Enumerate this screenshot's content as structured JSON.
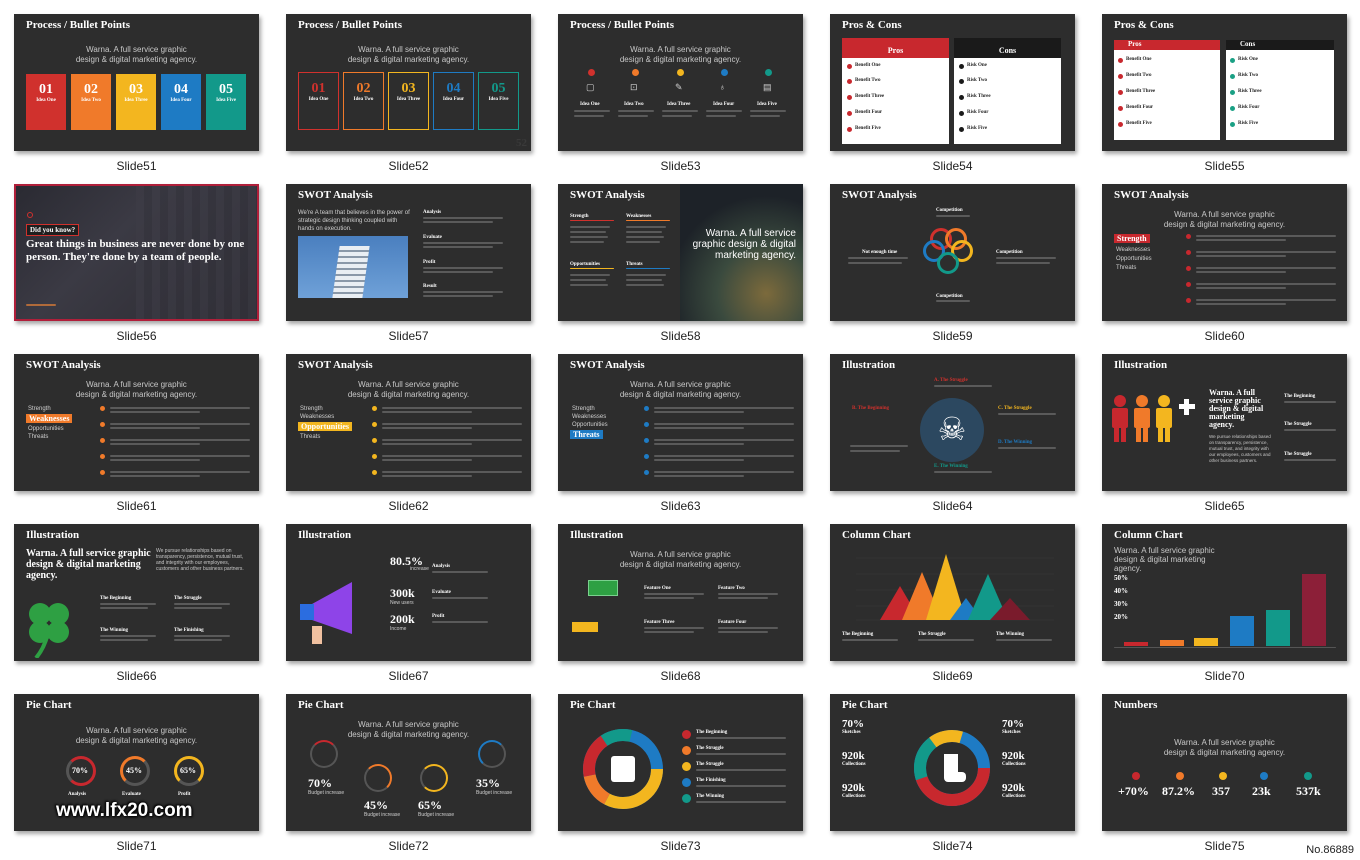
{
  "slides": [
    {
      "label": "Slide51",
      "title": "Process / Bullet Points",
      "subtitle": "Warna. A full service graphic design & digital marketing agency.",
      "blocks": [
        {
          "num": "01",
          "text": "Idea One"
        },
        {
          "num": "02",
          "text": "Idea Two"
        },
        {
          "num": "03",
          "text": "Idea Three"
        },
        {
          "num": "04",
          "text": "Idea Four"
        },
        {
          "num": "05",
          "text": "Idea Five"
        }
      ]
    },
    {
      "label": "Slide52",
      "title": "Process / Bullet Points",
      "subtitle": "Warna. A full service graphic design & digital marketing agency.",
      "blocks": [
        {
          "num": "01",
          "text": "Idea One"
        },
        {
          "num": "02",
          "text": "Idea Two"
        },
        {
          "num": "03",
          "text": "Idea Three"
        },
        {
          "num": "04",
          "text": "Idea Four"
        },
        {
          "num": "05",
          "text": "Idea Five"
        }
      ]
    },
    {
      "label": "Slide53",
      "title": "Process / Bullet Points",
      "subtitle": "Warna. A full service graphic design & digital marketing agency.",
      "items": [
        "Idea One",
        "Idea Two",
        "Idea Three",
        "Idea Four",
        "Idea Five"
      ]
    },
    {
      "label": "Slide54",
      "title": "Pros & Cons",
      "pros": "Pros",
      "cons": "Cons",
      "pros_items": [
        "Benefit One",
        "Benefit Two",
        "Benefit Three",
        "Benefit Four",
        "Benefit Five"
      ],
      "cons_items": [
        "Risk One",
        "Risk Two",
        "Risk Three",
        "Risk Four",
        "Risk Five"
      ]
    },
    {
      "label": "Slide55",
      "title": "Pros & Cons",
      "pros": "Pros",
      "cons": "Cons",
      "pros_items": [
        "Benefit One",
        "Benefit Two",
        "Benefit Three",
        "Benefit Four",
        "Benefit Five"
      ],
      "cons_items": [
        "Risk One",
        "Risk Two",
        "Risk Three",
        "Risk Four",
        "Risk Five"
      ]
    },
    {
      "label": "Slide56",
      "tag": "Did you know?",
      "quote": "Great things in business are never done by one person. They're done by a team of people."
    },
    {
      "label": "Slide57",
      "title": "SWOT Analysis",
      "text": "We're A team that believes in the power of strategic design thinking coupled with hands on execution.",
      "items": [
        "Analysis",
        "Evaluate",
        "Profit",
        "Result"
      ]
    },
    {
      "label": "Slide58",
      "title": "SWOT Analysis",
      "quads": [
        "Strength",
        "Weaknesses",
        "Opportunities",
        "Threats"
      ],
      "right_text": "Warna. A full service graphic design & digital marketing agency."
    },
    {
      "label": "Slide59",
      "title": "SWOT Analysis",
      "labels": [
        "Competition",
        "Not enough time",
        "Competition",
        "Competition"
      ]
    },
    {
      "label": "Slide60",
      "title": "SWOT Analysis",
      "subtitle": "Warna. A full service graphic design & digital marketing agency.",
      "list": [
        "Strength",
        "Weaknesses",
        "Opportunities",
        "Threats"
      ],
      "highlight": "Strength"
    },
    {
      "label": "Slide61",
      "title": "SWOT Analysis",
      "subtitle": "Warna. A full service graphic design & digital marketing agency.",
      "list": [
        "Strength",
        "Weaknesses",
        "Opportunities",
        "Threats"
      ],
      "highlight": "Weaknesses"
    },
    {
      "label": "Slide62",
      "title": "SWOT Analysis",
      "subtitle": "Warna. A full service graphic design & digital marketing agency.",
      "list": [
        "Strength",
        "Weaknesses",
        "Opportunities",
        "Threats"
      ],
      "highlight": "Opportunities"
    },
    {
      "label": "Slide63",
      "title": "SWOT Analysis",
      "subtitle": "Warna. A full service graphic design & digital marketing agency.",
      "list": [
        "Strength",
        "Weaknesses",
        "Opportunities",
        "Threats"
      ],
      "highlight": "Threats"
    },
    {
      "label": "Slide64",
      "title": "Illustration",
      "labels": [
        "A. The Struggle",
        "B. The Beginning",
        "C. The Struggle",
        "D. The Winning",
        "E. The Winning"
      ]
    },
    {
      "label": "Slide65",
      "title": "Illustration",
      "headline": "Warna. A full service graphic design & digital marketing agency.",
      "text": "We pursue relationships based on transparency, persistence, mutual trust, and integrity with our employees, customers and other business partners.",
      "items": [
        "The Beginning",
        "The Struggle",
        "The Struggle"
      ]
    },
    {
      "label": "Slide66",
      "title": "Illustration",
      "headline": "Warna. A full service graphic design & digital marketing agency.",
      "text": "We pursue relationships based on transparency, persistence, mutual trust, and integrity with our employees, customers and other business partners.",
      "items": [
        "The Beginning",
        "The Struggle",
        "The Winning",
        "The Finishing"
      ]
    },
    {
      "label": "Slide67",
      "title": "Illustration",
      "stats": [
        {
          "value": "80.5%",
          "caption": "increase"
        },
        {
          "value": "300k",
          "caption": "New users"
        },
        {
          "value": "200k",
          "caption": "Income"
        }
      ],
      "items": [
        "Analysis",
        "Evaluate",
        "Profit"
      ]
    },
    {
      "label": "Slide68",
      "title": "Illustration",
      "subtitle": "Warna. A full service graphic design & digital marketing agency.",
      "items": [
        "Feature One",
        "Feature Two",
        "Feature Three",
        "Feature Four"
      ]
    },
    {
      "label": "Slide69",
      "title": "Column Chart",
      "items": [
        "The Beginning",
        "The Struggle",
        "The Winning"
      ]
    },
    {
      "label": "Slide70",
      "title": "Column Chart",
      "subtitle": "Warna. A full service graphic design & digital marketing agency.",
      "pcts": [
        "50%",
        "40%",
        "30%",
        "20%"
      ]
    },
    {
      "label": "Slide71",
      "title": "Pie Chart",
      "subtitle": "Warna. A full service graphic design & digital marketing agency.",
      "rings": [
        {
          "value": "70%",
          "label": "Analysis"
        },
        {
          "value": "45%",
          "label": "Evaluate"
        },
        {
          "value": "65%",
          "label": "Profit"
        }
      ]
    },
    {
      "label": "Slide72",
      "title": "Pie Chart",
      "subtitle": "Warna. A full service graphic design & digital marketing agency.",
      "stats": [
        {
          "value": "70%",
          "caption": "Budget increase"
        },
        {
          "value": "45%",
          "caption": "Budget increase"
        },
        {
          "value": "65%",
          "caption": "Budget increase"
        },
        {
          "value": "35%",
          "caption": "Budget increase"
        }
      ]
    },
    {
      "label": "Slide73",
      "title": "Pie Chart",
      "items": [
        "The Beginning",
        "The Struggle",
        "The Struggle",
        "The Finishing",
        "The Winning"
      ]
    },
    {
      "label": "Slide74",
      "title": "Pie Chart",
      "left": [
        {
          "value": "70%",
          "caption": "Sketches"
        },
        {
          "value": "920k",
          "caption": "Collections"
        },
        {
          "value": "920k",
          "caption": "Collections"
        }
      ],
      "right": [
        {
          "value": "70%",
          "caption": "Sketches"
        },
        {
          "value": "920k",
          "caption": "Collections"
        },
        {
          "value": "920k",
          "caption": "Collections"
        }
      ]
    },
    {
      "label": "Slide75",
      "title": "Numbers",
      "subtitle": "Warna. A full service graphic design & digital marketing agency.",
      "stats": [
        "+70%",
        "87.2%",
        "357",
        "23k",
        "537k"
      ]
    }
  ],
  "watermark": "www.lfx20.com",
  "code_id": "No.86889",
  "colors": {
    "slide_bg": "#2d2d2d",
    "red": "#d0312d",
    "orange": "#f07a2a",
    "yellow": "#f3b61f",
    "blue": "#1e7bc4",
    "teal": "#12998a",
    "pros_red": "#c8282e",
    "cons_dark": "#1a1a1a",
    "cons_teal": "#1aa084"
  }
}
